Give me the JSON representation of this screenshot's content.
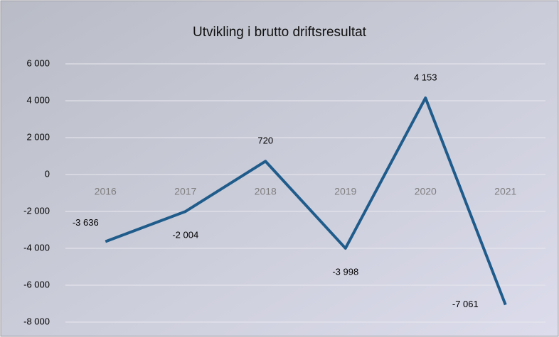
{
  "chart_data": {
    "type": "line",
    "title": "Utvikling i brutto driftsresultat",
    "categories": [
      "2016",
      "2017",
      "2018",
      "2019",
      "2020",
      "2021"
    ],
    "values": [
      -3636,
      -2004,
      720,
      -3998,
      4153,
      -7061
    ],
    "value_labels": [
      "-3 636",
      "-2 004",
      "720",
      "-3 998",
      "4 153",
      "-7 061"
    ],
    "color": "#1f5c8b",
    "ylim": [
      -8000,
      6000
    ],
    "yticks": [
      {
        "value": -8000,
        "label": "-8 000"
      },
      {
        "value": -6000,
        "label": "-6 000"
      },
      {
        "value": -4000,
        "label": "-4 000"
      },
      {
        "value": -2000,
        "label": "-2 000"
      },
      0,
      {
        "value": 2000,
        "label": "2 000"
      },
      {
        "value": 4000,
        "label": "4 000"
      },
      {
        "value": 6000,
        "label": "6 000"
      }
    ],
    "grid": true
  }
}
